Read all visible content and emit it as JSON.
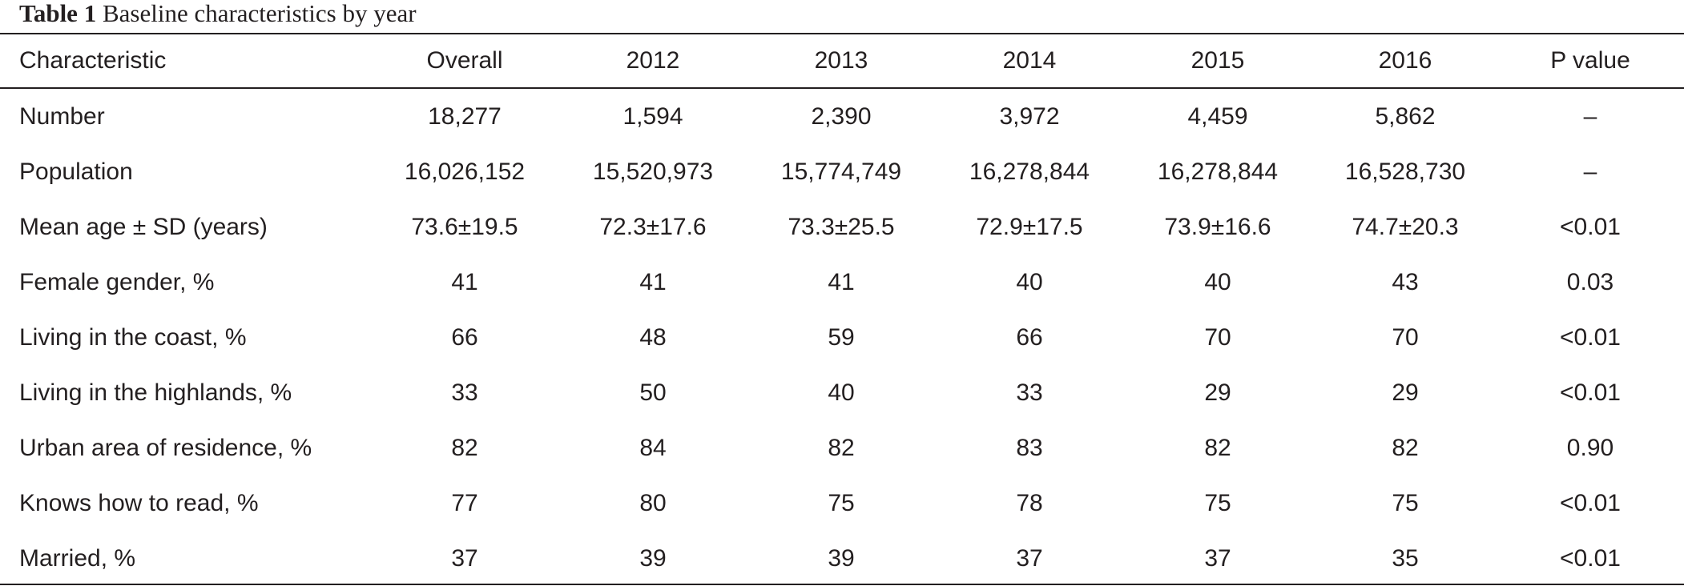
{
  "caption": {
    "label": "Table 1",
    "title": "Baseline characteristics by year"
  },
  "table": {
    "headers": [
      "Characteristic",
      "Overall",
      "2012",
      "2013",
      "2014",
      "2015",
      "2016",
      "P value"
    ],
    "rows": [
      [
        "Number",
        "18,277",
        "1,594",
        "2,390",
        "3,972",
        "4,459",
        "5,862",
        "–"
      ],
      [
        "Population",
        "16,026,152",
        "15,520,973",
        "15,774,749",
        "16,278,844",
        "16,278,844",
        "16,528,730",
        "–"
      ],
      [
        "Mean age ± SD (years)",
        "73.6±19.5",
        "72.3±17.6",
        "73.3±25.5",
        "72.9±17.5",
        "73.9±16.6",
        "74.7±20.3",
        "<0.01"
      ],
      [
        "Female gender, %",
        "41",
        "41",
        "41",
        "40",
        "40",
        "43",
        "0.03"
      ],
      [
        "Living in the coast, %",
        "66",
        "48",
        "59",
        "66",
        "70",
        "70",
        "<0.01"
      ],
      [
        "Living in the highlands, %",
        "33",
        "50",
        "40",
        "33",
        "29",
        "29",
        "<0.01"
      ],
      [
        "Urban area of residence, %",
        "82",
        "84",
        "82",
        "83",
        "82",
        "82",
        "0.90"
      ],
      [
        "Knows how to read, %",
        "77",
        "80",
        "75",
        "78",
        "75",
        "75",
        "<0.01"
      ],
      [
        "Married, %",
        "37",
        "39",
        "39",
        "37",
        "37",
        "35",
        "<0.01"
      ]
    ]
  }
}
